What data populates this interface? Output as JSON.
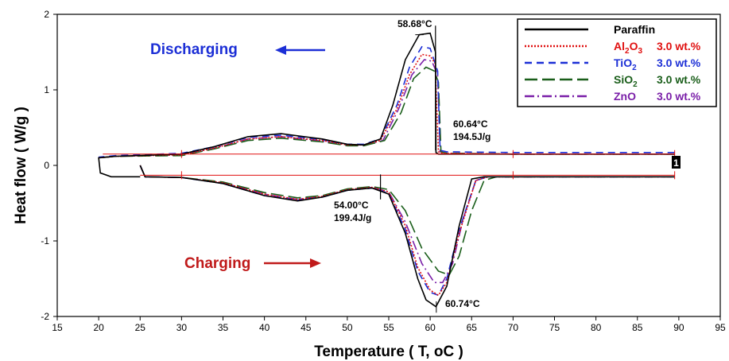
{
  "chart_data": {
    "type": "line",
    "xlabel": "Temperature ( T, ",
    "xlabel_unit": "oC )",
    "ylabel": "Heat flow ( W/g )",
    "xlim": [
      15,
      95
    ],
    "ylim": [
      -2,
      2
    ],
    "xticks": [
      15,
      20,
      25,
      30,
      35,
      40,
      45,
      50,
      55,
      60,
      65,
      70,
      75,
      80,
      85,
      90,
      95
    ],
    "yticks": [
      -2,
      -1,
      0,
      1,
      2
    ],
    "legend_position": "top-right",
    "legend": [
      {
        "name": "Paraffin",
        "suffix": "",
        "color": "#000000",
        "dash": ""
      },
      {
        "name": "Al",
        "sub": "2",
        "name2": "O",
        "sub2": "3",
        "suffix": "3.0 wt.%",
        "color": "#e01010",
        "dash": "2,2"
      },
      {
        "name": "TiO",
        "sub": "2",
        "name2": "",
        "sub2": "",
        "suffix": "3.0 wt.%",
        "color": "#1c2fd6",
        "dash": "9,6"
      },
      {
        "name": "SiO",
        "sub": "2",
        "name2": "",
        "sub2": "",
        "suffix": "3.0 wt.%",
        "color": "#1a5e1a",
        "dash": "16,6"
      },
      {
        "name": "ZnO",
        "sub": "",
        "name2": "",
        "sub2": "",
        "suffix": "3.0 wt.%",
        "color": "#7a1fa8",
        "dash": "12,4,2,4"
      }
    ],
    "annotations": {
      "peak_top": "58.68°C",
      "top_temp": "60.64°C",
      "top_energy": "194.5J/g",
      "bottom_temp": "54.00°C",
      "bottom_energy": "199.4J/g",
      "peak_bottom": "60.74°C",
      "discharging": "Discharging",
      "charging": "Charging",
      "box_label": "1"
    },
    "series": [
      {
        "name": "Paraffin",
        "color": "#000000",
        "dash": "",
        "heat": [
          [
            25,
            0.0
          ],
          [
            25.6,
            -0.15
          ],
          [
            30,
            -0.16
          ],
          [
            35,
            -0.24
          ],
          [
            40,
            -0.4
          ],
          [
            44,
            -0.47
          ],
          [
            47,
            -0.42
          ],
          [
            50,
            -0.33
          ],
          [
            53,
            -0.3
          ],
          [
            55,
            -0.38
          ],
          [
            57,
            -0.9
          ],
          [
            58.5,
            -1.5
          ],
          [
            59.5,
            -1.78
          ],
          [
            60.7,
            -1.87
          ],
          [
            62,
            -1.6
          ],
          [
            63.5,
            -0.8
          ],
          [
            65,
            -0.18
          ],
          [
            66.5,
            -0.15
          ],
          [
            80,
            -0.15
          ],
          [
            89.5,
            -0.15
          ]
        ],
        "cool": [
          [
            89.5,
            0.15
          ],
          [
            80,
            0.15
          ],
          [
            70,
            0.15
          ],
          [
            61,
            0.15
          ],
          [
            60.7,
            0.17
          ],
          [
            60.64,
            1.5
          ],
          [
            60,
            1.75
          ],
          [
            58.68,
            1.73
          ],
          [
            57,
            1.4
          ],
          [
            55.5,
            0.8
          ],
          [
            54,
            0.35
          ],
          [
            52,
            0.27
          ],
          [
            50,
            0.28
          ],
          [
            47,
            0.35
          ],
          [
            42,
            0.42
          ],
          [
            38,
            0.38
          ],
          [
            34,
            0.25
          ],
          [
            30,
            0.15
          ],
          [
            22,
            0.12
          ],
          [
            20,
            0.1
          ],
          [
            20.2,
            -0.1
          ],
          [
            21.5,
            -0.15
          ],
          [
            25,
            -0.15
          ]
        ]
      },
      {
        "name": "Al2O3",
        "color": "#e01010",
        "dash": "2,2",
        "heat": [
          [
            25,
            0.0
          ],
          [
            25.6,
            -0.15
          ],
          [
            30,
            -0.16
          ],
          [
            35,
            -0.23
          ],
          [
            40,
            -0.38
          ],
          [
            44,
            -0.45
          ],
          [
            47,
            -0.41
          ],
          [
            50,
            -0.32
          ],
          [
            53,
            -0.29
          ],
          [
            55,
            -0.35
          ],
          [
            57,
            -0.8
          ],
          [
            58.5,
            -1.35
          ],
          [
            60,
            -1.65
          ],
          [
            61,
            -1.72
          ],
          [
            62,
            -1.55
          ],
          [
            63.5,
            -0.9
          ],
          [
            65.5,
            -0.2
          ],
          [
            67,
            -0.15
          ],
          [
            80,
            -0.15
          ],
          [
            89.5,
            -0.15
          ]
        ],
        "cool": [
          [
            89.5,
            0.15
          ],
          [
            80,
            0.15
          ],
          [
            70,
            0.15
          ],
          [
            61.5,
            0.16
          ],
          [
            61,
            0.18
          ],
          [
            60.6,
            1.35
          ],
          [
            60,
            1.45
          ],
          [
            59,
            1.47
          ],
          [
            57.5,
            1.2
          ],
          [
            56,
            0.75
          ],
          [
            54,
            0.33
          ],
          [
            52,
            0.27
          ],
          [
            50,
            0.27
          ],
          [
            47,
            0.33
          ],
          [
            42,
            0.38
          ],
          [
            38,
            0.35
          ],
          [
            34,
            0.23
          ],
          [
            30,
            0.14
          ],
          [
            22,
            0.12
          ],
          [
            20,
            0.1
          ]
        ]
      },
      {
        "name": "TiO2",
        "color": "#1c2fd6",
        "dash": "9,6",
        "heat": [
          [
            25,
            0.0
          ],
          [
            25.6,
            -0.15
          ],
          [
            30,
            -0.16
          ],
          [
            35,
            -0.24
          ],
          [
            40,
            -0.4
          ],
          [
            44,
            -0.46
          ],
          [
            47,
            -0.42
          ],
          [
            50,
            -0.33
          ],
          [
            53,
            -0.3
          ],
          [
            55,
            -0.37
          ],
          [
            57,
            -0.85
          ],
          [
            58.5,
            -1.4
          ],
          [
            60,
            -1.68
          ],
          [
            61,
            -1.72
          ],
          [
            62,
            -1.5
          ],
          [
            63.5,
            -0.85
          ],
          [
            65.5,
            -0.2
          ],
          [
            67,
            -0.15
          ],
          [
            80,
            -0.15
          ],
          [
            89.5,
            -0.15
          ]
        ],
        "cool": [
          [
            89.5,
            0.17
          ],
          [
            80,
            0.17
          ],
          [
            70,
            0.17
          ],
          [
            62,
            0.18
          ],
          [
            61.2,
            0.2
          ],
          [
            60.9,
            1.25
          ],
          [
            60,
            1.55
          ],
          [
            59,
            1.57
          ],
          [
            57.5,
            1.3
          ],
          [
            56,
            0.8
          ],
          [
            54,
            0.35
          ],
          [
            52,
            0.28
          ],
          [
            50,
            0.28
          ],
          [
            47,
            0.34
          ],
          [
            42,
            0.4
          ],
          [
            38,
            0.37
          ],
          [
            34,
            0.25
          ],
          [
            30,
            0.16
          ],
          [
            22,
            0.13
          ],
          [
            20,
            0.11
          ]
        ]
      },
      {
        "name": "SiO2",
        "color": "#1a5e1a",
        "dash": "16,6",
        "heat": [
          [
            25,
            0.0
          ],
          [
            25.6,
            -0.15
          ],
          [
            30,
            -0.16
          ],
          [
            35,
            -0.22
          ],
          [
            40,
            -0.36
          ],
          [
            44,
            -0.43
          ],
          [
            47,
            -0.4
          ],
          [
            50,
            -0.31
          ],
          [
            53,
            -0.28
          ],
          [
            55,
            -0.32
          ],
          [
            57,
            -0.6
          ],
          [
            59,
            -1.1
          ],
          [
            61,
            -1.4
          ],
          [
            62.3,
            -1.45
          ],
          [
            63.5,
            -1.2
          ],
          [
            65,
            -0.6
          ],
          [
            66.5,
            -0.2
          ],
          [
            68,
            -0.15
          ],
          [
            80,
            -0.15
          ],
          [
            89.5,
            -0.15
          ]
        ],
        "cool": [
          [
            89.5,
            0.15
          ],
          [
            80,
            0.15
          ],
          [
            70,
            0.15
          ],
          [
            62,
            0.16
          ],
          [
            61.3,
            0.18
          ],
          [
            61,
            1.1
          ],
          [
            60.5,
            1.25
          ],
          [
            59.5,
            1.3
          ],
          [
            58,
            1.15
          ],
          [
            56.5,
            0.7
          ],
          [
            54.5,
            0.33
          ],
          [
            52,
            0.26
          ],
          [
            50,
            0.26
          ],
          [
            47,
            0.31
          ],
          [
            42,
            0.36
          ],
          [
            38,
            0.33
          ],
          [
            34,
            0.22
          ],
          [
            30,
            0.13
          ],
          [
            22,
            0.12
          ],
          [
            20,
            0.1
          ]
        ]
      },
      {
        "name": "ZnO",
        "color": "#7a1fa8",
        "dash": "12,4,2,4",
        "heat": [
          [
            25,
            0.0
          ],
          [
            25.6,
            -0.15
          ],
          [
            30,
            -0.16
          ],
          [
            35,
            -0.23
          ],
          [
            40,
            -0.38
          ],
          [
            44,
            -0.45
          ],
          [
            47,
            -0.41
          ],
          [
            50,
            -0.32
          ],
          [
            53,
            -0.29
          ],
          [
            55,
            -0.35
          ],
          [
            57,
            -0.75
          ],
          [
            59,
            -1.3
          ],
          [
            60.5,
            -1.55
          ],
          [
            61.5,
            -1.55
          ],
          [
            62.7,
            -1.3
          ],
          [
            64,
            -0.7
          ],
          [
            65.5,
            -0.2
          ],
          [
            67,
            -0.15
          ],
          [
            80,
            -0.15
          ],
          [
            89.5,
            -0.15
          ]
        ],
        "cool": [
          [
            89.5,
            0.15
          ],
          [
            80,
            0.15
          ],
          [
            70,
            0.15
          ],
          [
            62,
            0.16
          ],
          [
            61.2,
            0.18
          ],
          [
            60.9,
            1.2
          ],
          [
            60.2,
            1.38
          ],
          [
            59.3,
            1.4
          ],
          [
            57.8,
            1.2
          ],
          [
            56.2,
            0.75
          ],
          [
            54.3,
            0.33
          ],
          [
            52,
            0.27
          ],
          [
            50,
            0.27
          ],
          [
            47,
            0.32
          ],
          [
            42,
            0.38
          ],
          [
            38,
            0.35
          ],
          [
            34,
            0.23
          ],
          [
            30,
            0.14
          ],
          [
            22,
            0.12
          ],
          [
            20,
            0.1
          ]
        ]
      }
    ]
  }
}
